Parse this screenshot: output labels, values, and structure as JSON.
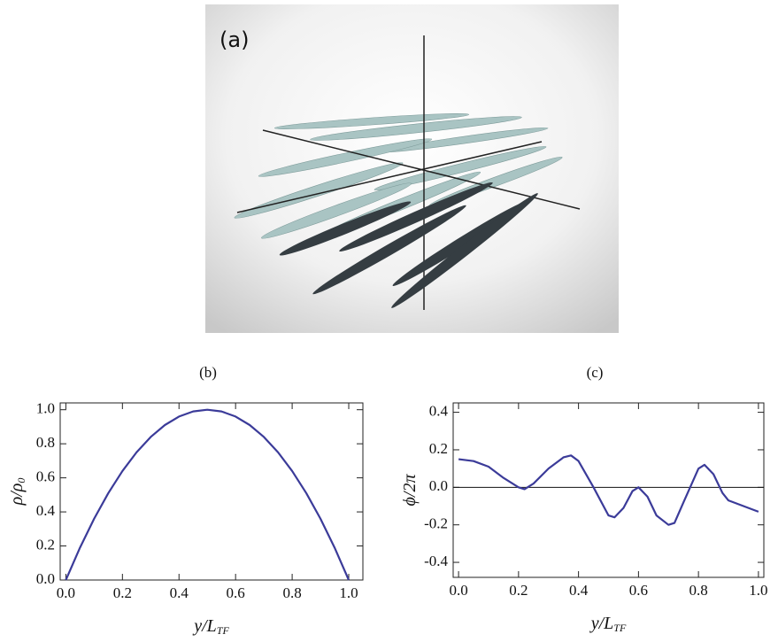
{
  "panel_a": {
    "label": "(a)"
  },
  "chart_data": [
    {
      "type": "line",
      "title": "(b)",
      "ylabel": "ρ/ρ",
      "ylabel_sub": "0",
      "xlabel": "y/L",
      "xlabel_sub": "TF",
      "x": [
        0,
        0.05,
        0.1,
        0.15,
        0.2,
        0.25,
        0.3,
        0.35,
        0.4,
        0.45,
        0.5,
        0.55,
        0.6,
        0.65,
        0.7,
        0.75,
        0.8,
        0.85,
        0.9,
        0.95,
        1.0
      ],
      "series": [
        {
          "color": "#3b3b99",
          "values": [
            0,
            0.19,
            0.36,
            0.51,
            0.64,
            0.75,
            0.84,
            0.91,
            0.96,
            0.99,
            1.0,
            0.99,
            0.96,
            0.91,
            0.84,
            0.75,
            0.64,
            0.51,
            0.36,
            0.19,
            0
          ]
        }
      ],
      "xlim": [
        -0.02,
        1.05
      ],
      "ylim": [
        0,
        1.04
      ],
      "xticks": [
        {
          "value": 0,
          "label": "0.0"
        },
        0.2,
        0.4,
        0.6,
        0.8,
        {
          "value": 1,
          "label": "1.0"
        }
      ],
      "yticks": [
        {
          "value": 0,
          "label": "0.0"
        },
        0.2,
        0.4,
        0.6,
        0.8,
        {
          "value": 1,
          "label": "1.0"
        }
      ]
    },
    {
      "type": "line",
      "title": "(c)",
      "ylabel": "ϕ/2π",
      "xlabel": "y/L",
      "xlabel_sub": "TF",
      "x": [
        0,
        0.05,
        0.1,
        0.15,
        0.2,
        0.22,
        0.25,
        0.3,
        0.35,
        0.375,
        0.4,
        0.45,
        0.5,
        0.52,
        0.55,
        0.58,
        0.6,
        0.63,
        0.66,
        0.7,
        0.72,
        0.75,
        0.8,
        0.82,
        0.85,
        0.88,
        0.9,
        0.95,
        1.0
      ],
      "series": [
        {
          "color": "#3b3b99",
          "values": [
            0.15,
            0.14,
            0.11,
            0.05,
            0.0,
            -0.01,
            0.02,
            0.1,
            0.16,
            0.17,
            0.14,
            0.0,
            -0.15,
            -0.16,
            -0.11,
            -0.02,
            0.0,
            -0.05,
            -0.15,
            -0.2,
            -0.19,
            -0.08,
            0.1,
            0.12,
            0.07,
            -0.03,
            -0.07,
            -0.1,
            -0.13
          ]
        }
      ],
      "hline": 0,
      "xlim": [
        -0.018,
        1.018
      ],
      "ylim": [
        -0.48,
        0.45
      ],
      "xticks": [
        {
          "value": 0,
          "label": "0.0"
        },
        0.2,
        0.4,
        0.6,
        0.8,
        {
          "value": 1,
          "label": "1.0"
        }
      ],
      "yticks": [
        -0.4,
        -0.2,
        {
          "value": 0,
          "label": "0.0"
        },
        0.2,
        0.4
      ]
    }
  ]
}
